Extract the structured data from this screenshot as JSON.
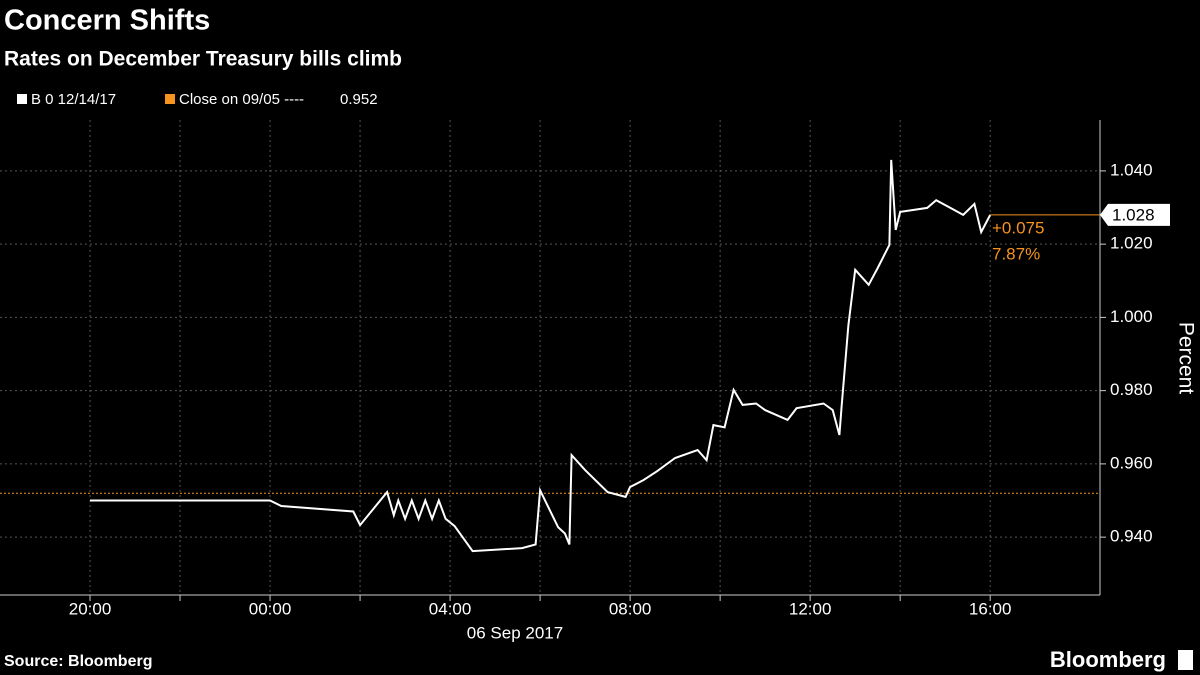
{
  "chart_data": {
    "type": "line",
    "title": "Concern Shifts",
    "subtitle": "Rates on December Treasury bills climb",
    "series": [
      {
        "name": "B 0 12/14/17",
        "color": "#ffffff",
        "x": [
          -4,
          0,
          0.25,
          1.85,
          2.0,
          2.6,
          2.75,
          2.85,
          3.0,
          3.15,
          3.3,
          3.45,
          3.6,
          3.75,
          3.9,
          4.1,
          4.5,
          5.6,
          5.9,
          6.0,
          6.4,
          6.55,
          6.65,
          6.7,
          7.0,
          7.5,
          7.9,
          8.0,
          8.3,
          8.6,
          9.0,
          9.5,
          9.7,
          9.85,
          10.1,
          10.3,
          10.5,
          10.8,
          11.0,
          11.5,
          11.7,
          12.3,
          12.5,
          12.65,
          12.7,
          12.85,
          13.0,
          13.3,
          13.5,
          13.76,
          13.8,
          13.9,
          14.0,
          14.6,
          14.8,
          15.1,
          15.4,
          15.65,
          15.8,
          16.0
        ],
        "values": [
          0.95,
          0.95,
          0.9485,
          0.947,
          0.9433,
          0.9523,
          0.946,
          0.95,
          0.945,
          0.95,
          0.945,
          0.95,
          0.945,
          0.95,
          0.945,
          0.943,
          0.9362,
          0.937,
          0.938,
          0.9528,
          0.9427,
          0.941,
          0.938,
          0.9624,
          0.9583,
          0.9523,
          0.951,
          0.9537,
          0.9556,
          0.958,
          0.9616,
          0.9638,
          0.961,
          0.9706,
          0.97,
          0.9802,
          0.9761,
          0.9765,
          0.9747,
          0.972,
          0.9752,
          0.9765,
          0.9747,
          0.9679,
          0.976,
          0.9979,
          1.013,
          1.0089,
          1.0135,
          1.0198,
          1.043,
          1.0239,
          1.0288,
          1.0299,
          1.032,
          1.03,
          1.028,
          1.031,
          1.0233,
          1.028
        ]
      }
    ],
    "reference_line": {
      "name": "Close on 09/05 ----",
      "value": 0.952,
      "color": "#f7931e"
    },
    "last_value": 1.028,
    "change_label": "+0.075",
    "change_pct_label": "7.87%",
    "xlim": [
      -6,
      18.44
    ],
    "xticks": [
      {
        "value": -4,
        "label": "20:00"
      },
      {
        "value": -2,
        "label": null
      },
      {
        "value": 0,
        "label": "00:00"
      },
      {
        "value": 2,
        "label": null
      },
      {
        "value": 4,
        "label": "04:00"
      },
      {
        "value": 6,
        "label": null
      },
      {
        "value": 8,
        "label": "08:00"
      },
      {
        "value": 10,
        "label": null
      },
      {
        "value": 12,
        "label": "12:00"
      },
      {
        "value": 14,
        "label": null
      },
      {
        "value": 16,
        "label": "16:00"
      }
    ],
    "x_date_label": "06 Sep 2017",
    "ylim": [
      0.9242,
      1.0539
    ],
    "yticks": [
      {
        "value": 0.94,
        "label": "0.940"
      },
      {
        "value": 0.96,
        "label": "0.960"
      },
      {
        "value": 0.98,
        "label": "0.980"
      },
      {
        "value": 1.0,
        "label": "1.000"
      },
      {
        "value": 1.02,
        "label": "1.020"
      },
      {
        "value": 1.04,
        "label": "1.040"
      }
    ],
    "y_label": "Percent",
    "grid": true,
    "source": "Source: Bloomberg",
    "brand": "Bloomberg"
  }
}
